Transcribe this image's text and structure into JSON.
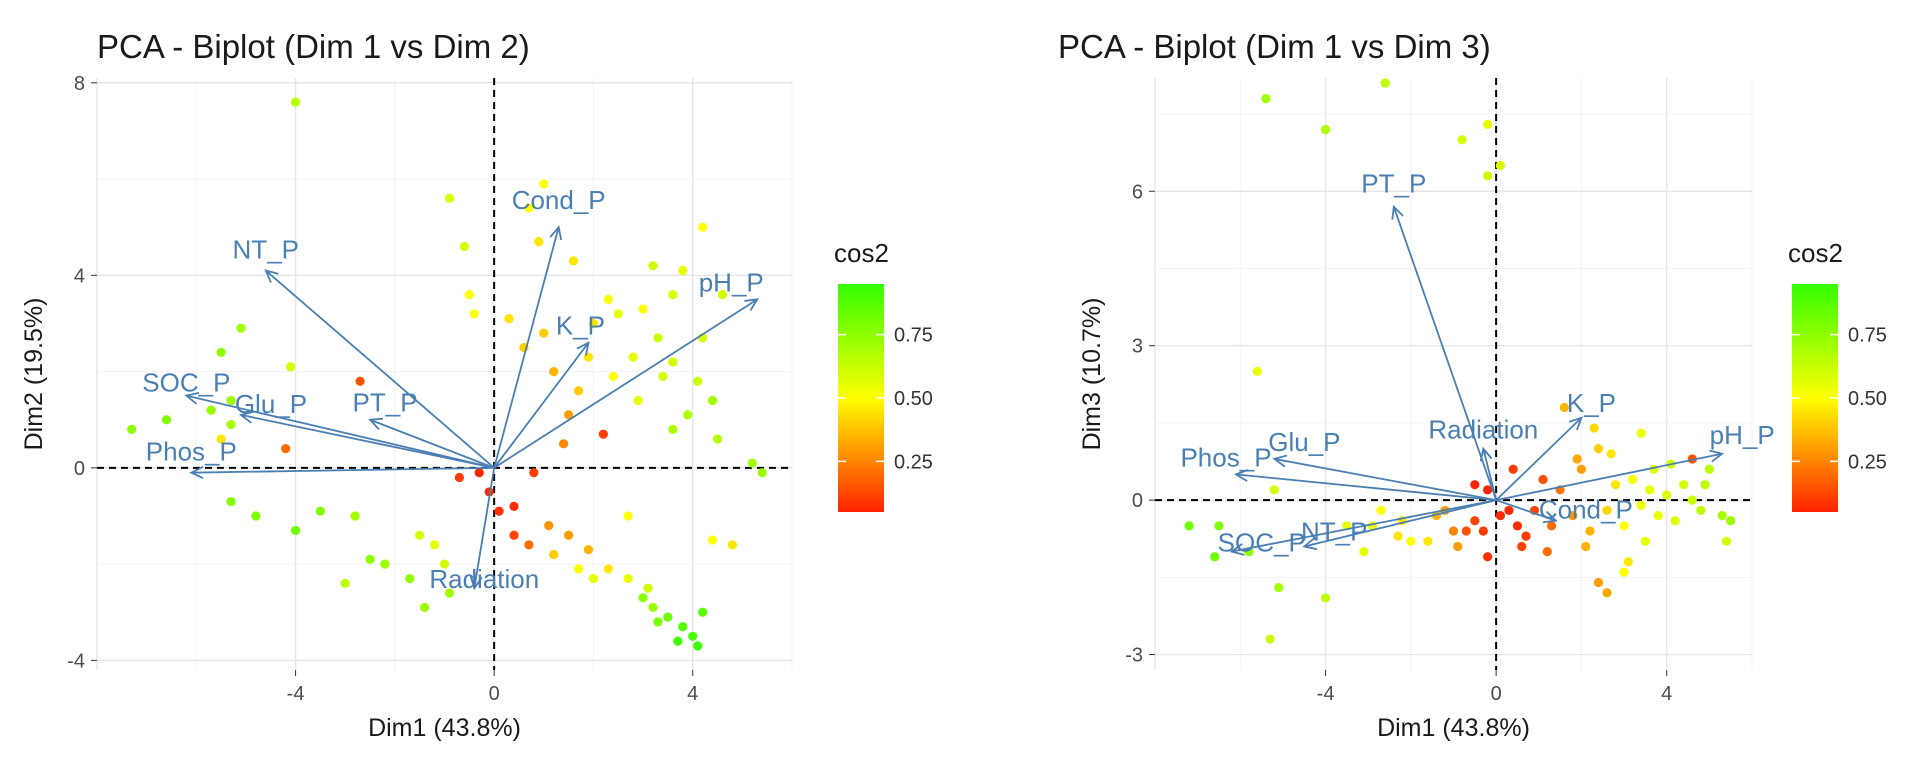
{
  "chart_data": [
    {
      "type": "scatter",
      "title": "PCA - Biplot (Dim 1 vs Dim 2)",
      "xlabel": "Dim1 (43.8%)",
      "ylabel": "Dim2 (19.5%)",
      "xlim": [
        -8,
        6
      ],
      "ylim": [
        -4.2,
        8.1
      ],
      "xticks": [
        -4,
        0,
        4
      ],
      "yticks": [
        -4,
        0,
        4,
        8
      ],
      "grid": true,
      "colorbar": {
        "title": "cos2",
        "ticks": [
          0.25,
          0.5,
          0.75
        ],
        "range": [
          0.05,
          0.95
        ],
        "colors": [
          "#ff2200",
          "#ffff00",
          "#33ff00"
        ]
      },
      "variables": [
        {
          "name": "Cond_P",
          "x": 1.3,
          "y": 5.0
        },
        {
          "name": "pH_P",
          "x": 5.3,
          "y": 3.5
        },
        {
          "name": "K_P",
          "x": 1.9,
          "y": 2.6
        },
        {
          "name": "NT_P",
          "x": -4.6,
          "y": 4.1
        },
        {
          "name": "SOC_P",
          "x": -6.2,
          "y": 1.5
        },
        {
          "name": "Glu_P",
          "x": -5.1,
          "y": 1.1
        },
        {
          "name": "PT_P",
          "x": -2.5,
          "y": 1.0
        },
        {
          "name": "Phos_P",
          "x": -6.1,
          "y": -0.1
        },
        {
          "name": "Radiation",
          "x": -0.4,
          "y": -2.5
        }
      ],
      "points": [
        [
          -4.0,
          7.6,
          0.65
        ],
        [
          1.0,
          5.9,
          0.5
        ],
        [
          -0.9,
          5.6,
          0.58
        ],
        [
          4.2,
          5.0,
          0.5
        ],
        [
          0.7,
          5.4,
          0.5
        ],
        [
          -0.6,
          4.6,
          0.6
        ],
        [
          0.9,
          4.7,
          0.45
        ],
        [
          1.6,
          4.3,
          0.45
        ],
        [
          3.2,
          4.2,
          0.62
        ],
        [
          3.8,
          4.1,
          0.55
        ],
        [
          4.6,
          3.6,
          0.6
        ],
        [
          -0.5,
          3.6,
          0.5
        ],
        [
          -5.1,
          2.9,
          0.7
        ],
        [
          -5.5,
          2.4,
          0.75
        ],
        [
          -4.1,
          2.1,
          0.6
        ],
        [
          -2.7,
          1.8,
          0.15
        ],
        [
          -5.3,
          1.4,
          0.72
        ],
        [
          -5.7,
          1.2,
          0.73
        ],
        [
          -5.3,
          0.9,
          0.7
        ],
        [
          -7.3,
          0.8,
          0.75
        ],
        [
          -6.6,
          1.0,
          0.78
        ],
        [
          -5.5,
          0.6,
          0.45
        ],
        [
          -4.2,
          0.4,
          0.2
        ],
        [
          -5.3,
          -0.7,
          0.78
        ],
        [
          -3.5,
          -0.9,
          0.78
        ],
        [
          -4.8,
          -1.0,
          0.78
        ],
        [
          -4.0,
          -1.3,
          0.82
        ],
        [
          -2.8,
          -1.0,
          0.7
        ],
        [
          -1.5,
          -1.4,
          0.6
        ],
        [
          -1.2,
          -1.6,
          0.55
        ],
        [
          -2.5,
          -1.9,
          0.75
        ],
        [
          -2.2,
          -2.0,
          0.72
        ],
        [
          -1.7,
          -2.3,
          0.75
        ],
        [
          -1.0,
          -2.0,
          0.6
        ],
        [
          -0.9,
          -2.6,
          0.7
        ],
        [
          -1.4,
          -2.9,
          0.73
        ],
        [
          -3.0,
          -2.4,
          0.65
        ],
        [
          -0.7,
          -0.2,
          0.1
        ],
        [
          -0.3,
          -0.1,
          0.06
        ],
        [
          -0.1,
          -0.5,
          0.06
        ],
        [
          0.1,
          -0.9,
          0.08
        ],
        [
          0.4,
          -0.8,
          0.07
        ],
        [
          0.8,
          -0.1,
          0.1
        ],
        [
          0.4,
          -1.4,
          0.12
        ],
        [
          0.7,
          -1.6,
          0.2
        ],
        [
          1.1,
          -1.2,
          0.28
        ],
        [
          1.5,
          -1.4,
          0.3
        ],
        [
          1.9,
          -1.7,
          0.35
        ],
        [
          2.3,
          -2.1,
          0.45
        ],
        [
          2.7,
          -2.3,
          0.55
        ],
        [
          3.1,
          -2.5,
          0.6
        ],
        [
          3.2,
          -2.9,
          0.72
        ],
        [
          3.5,
          -3.1,
          0.82
        ],
        [
          3.8,
          -3.3,
          0.88
        ],
        [
          4.0,
          -3.5,
          0.9
        ],
        [
          3.7,
          -3.6,
          0.92
        ],
        [
          4.1,
          -3.7,
          0.93
        ],
        [
          3.3,
          -3.2,
          0.8
        ],
        [
          4.2,
          -3.0,
          0.85
        ],
        [
          3.0,
          -2.7,
          0.75
        ],
        [
          2.0,
          -2.3,
          0.55
        ],
        [
          1.7,
          -2.1,
          0.5
        ],
        [
          1.2,
          -1.8,
          0.4
        ],
        [
          4.4,
          -1.5,
          0.5
        ],
        [
          4.8,
          -1.6,
          0.45
        ],
        [
          2.7,
          -1.0,
          0.5
        ],
        [
          2.2,
          0.7,
          0.1
        ],
        [
          1.4,
          0.5,
          0.25
        ],
        [
          1.7,
          1.6,
          0.4
        ],
        [
          2.4,
          1.9,
          0.5
        ],
        [
          2.8,
          2.3,
          0.55
        ],
        [
          3.3,
          2.7,
          0.62
        ],
        [
          3.6,
          2.2,
          0.6
        ],
        [
          4.1,
          1.8,
          0.62
        ],
        [
          4.4,
          1.4,
          0.7
        ],
        [
          3.9,
          1.1,
          0.68
        ],
        [
          3.6,
          0.8,
          0.68
        ],
        [
          4.5,
          0.6,
          0.66
        ],
        [
          5.2,
          0.1,
          0.7
        ],
        [
          5.4,
          -0.1,
          0.72
        ],
        [
          4.2,
          2.7,
          0.6
        ],
        [
          2.5,
          3.2,
          0.55
        ],
        [
          3.0,
          3.3,
          0.5
        ],
        [
          2.0,
          3.0,
          0.45
        ],
        [
          1.0,
          2.8,
          0.4
        ],
        [
          0.3,
          3.1,
          0.45
        ],
        [
          -0.4,
          3.2,
          0.5
        ],
        [
          0.6,
          2.5,
          0.4
        ],
        [
          1.2,
          2.0,
          0.35
        ],
        [
          1.5,
          1.1,
          0.3
        ],
        [
          2.3,
          3.5,
          0.52
        ],
        [
          3.6,
          3.6,
          0.58
        ],
        [
          1.9,
          2.3,
          0.45
        ],
        [
          2.9,
          1.4,
          0.55
        ],
        [
          3.4,
          1.9,
          0.6
        ]
      ]
    },
    {
      "type": "scatter",
      "title": "PCA - Biplot (Dim 1 vs Dim 3)",
      "xlabel": "Dim1 (43.8%)",
      "ylabel": "Dim3 (10.7%)",
      "xlim": [
        -8,
        6
      ],
      "ylim": [
        -3.3,
        8.2
      ],
      "xticks": [
        -4,
        0,
        4
      ],
      "yticks": [
        -3,
        0,
        3,
        6
      ],
      "grid": true,
      "colorbar": {
        "title": "cos2",
        "ticks": [
          0.25,
          0.5,
          0.75
        ],
        "range": [
          0.05,
          0.95
        ],
        "colors": [
          "#ff2200",
          "#ffff00",
          "#33ff00"
        ]
      },
      "variables": [
        {
          "name": "PT_P",
          "x": -2.4,
          "y": 5.7
        },
        {
          "name": "Glu_P",
          "x": -5.2,
          "y": 0.8
        },
        {
          "name": "Phos_P",
          "x": -6.1,
          "y": 0.5
        },
        {
          "name": "SOC_P",
          "x": -6.2,
          "y": -1.0
        },
        {
          "name": "NT_P",
          "x": -4.5,
          "y": -0.9
        },
        {
          "name": "Radiation",
          "x": -0.3,
          "y": 1.0
        },
        {
          "name": "K_P",
          "x": 2.0,
          "y": 1.6
        },
        {
          "name": "Cond_P",
          "x": 1.4,
          "y": -0.4
        },
        {
          "name": "pH_P",
          "x": 5.3,
          "y": 0.9
        }
      ],
      "points": [
        [
          -2.6,
          8.1,
          0.65
        ],
        [
          -5.4,
          7.8,
          0.7
        ],
        [
          -4.0,
          7.2,
          0.68
        ],
        [
          -0.8,
          7.0,
          0.6
        ],
        [
          -0.2,
          7.3,
          0.55
        ],
        [
          -0.2,
          6.3,
          0.62
        ],
        [
          0.1,
          6.5,
          0.58
        ],
        [
          -5.6,
          2.5,
          0.55
        ],
        [
          -5.2,
          0.2,
          0.6
        ],
        [
          -6.5,
          -0.5,
          0.78
        ],
        [
          -7.2,
          -0.5,
          0.82
        ],
        [
          -6.6,
          -1.1,
          0.82
        ],
        [
          -5.8,
          -1.0,
          0.75
        ],
        [
          -5.1,
          -1.7,
          0.7
        ],
        [
          -5.3,
          -2.7,
          0.62
        ],
        [
          -4.0,
          -1.9,
          0.65
        ],
        [
          -3.5,
          -0.5,
          0.55
        ],
        [
          -2.7,
          -0.2,
          0.5
        ],
        [
          -2.2,
          -0.4,
          0.45
        ],
        [
          -2.0,
          -0.8,
          0.5
        ],
        [
          -1.6,
          -0.8,
          0.45
        ],
        [
          -1.2,
          -0.2,
          0.3
        ],
        [
          -1.0,
          -0.6,
          0.25
        ],
        [
          -0.7,
          -0.6,
          0.15
        ],
        [
          -0.5,
          -0.4,
          0.12
        ],
        [
          -0.3,
          -0.6,
          0.1
        ],
        [
          -0.2,
          -1.1,
          0.08
        ],
        [
          -0.5,
          0.3,
          0.06
        ],
        [
          -0.2,
          0.2,
          0.05
        ],
        [
          0.1,
          -0.3,
          0.06
        ],
        [
          0.3,
          -0.2,
          0.06
        ],
        [
          0.5,
          -0.5,
          0.07
        ],
        [
          0.7,
          -0.7,
          0.1
        ],
        [
          0.9,
          -0.2,
          0.12
        ],
        [
          1.1,
          0.4,
          0.15
        ],
        [
          1.3,
          -0.5,
          0.2
        ],
        [
          1.5,
          0.2,
          0.22
        ],
        [
          1.8,
          -0.3,
          0.28
        ],
        [
          2.0,
          0.6,
          0.3
        ],
        [
          2.2,
          -0.6,
          0.35
        ],
        [
          2.4,
          1.0,
          0.4
        ],
        [
          2.6,
          -0.2,
          0.42
        ],
        [
          2.8,
          0.3,
          0.45
        ],
        [
          3.0,
          -0.5,
          0.5
        ],
        [
          3.2,
          0.4,
          0.52
        ],
        [
          3.4,
          -0.1,
          0.55
        ],
        [
          3.6,
          0.2,
          0.55
        ],
        [
          3.8,
          -0.3,
          0.55
        ],
        [
          4.0,
          0.1,
          0.58
        ],
        [
          4.2,
          -0.4,
          0.58
        ],
        [
          4.4,
          0.3,
          0.6
        ],
        [
          4.6,
          0.0,
          0.62
        ],
        [
          4.8,
          -0.2,
          0.65
        ],
        [
          5.0,
          0.6,
          0.65
        ],
        [
          5.3,
          -0.3,
          0.7
        ],
        [
          5.5,
          -0.4,
          0.72
        ],
        [
          5.4,
          -0.8,
          0.6
        ],
        [
          2.4,
          -1.6,
          0.3
        ],
        [
          2.6,
          -1.8,
          0.32
        ],
        [
          3.1,
          -1.2,
          0.45
        ],
        [
          3.0,
          -1.4,
          0.5
        ],
        [
          2.3,
          1.4,
          0.42
        ],
        [
          1.6,
          1.8,
          0.35
        ],
        [
          3.4,
          1.3,
          0.55
        ],
        [
          4.6,
          0.8,
          0.15
        ],
        [
          -2.9,
          -0.5,
          0.55
        ],
        [
          -1.4,
          -0.3,
          0.35
        ],
        [
          0.4,
          0.6,
          0.1
        ],
        [
          1.9,
          0.8,
          0.32
        ],
        [
          3.7,
          0.6,
          0.58
        ],
        [
          1.2,
          -1.0,
          0.2
        ],
        [
          0.6,
          -0.9,
          0.12
        ],
        [
          -0.9,
          -0.9,
          0.3
        ],
        [
          -2.3,
          -0.7,
          0.45
        ],
        [
          -3.1,
          -1.0,
          0.55
        ],
        [
          4.1,
          0.7,
          0.6
        ],
        [
          4.9,
          0.3,
          0.65
        ],
        [
          2.7,
          0.9,
          0.45
        ],
        [
          3.5,
          -0.8,
          0.55
        ],
        [
          2.1,
          -0.9,
          0.35
        ]
      ]
    }
  ]
}
